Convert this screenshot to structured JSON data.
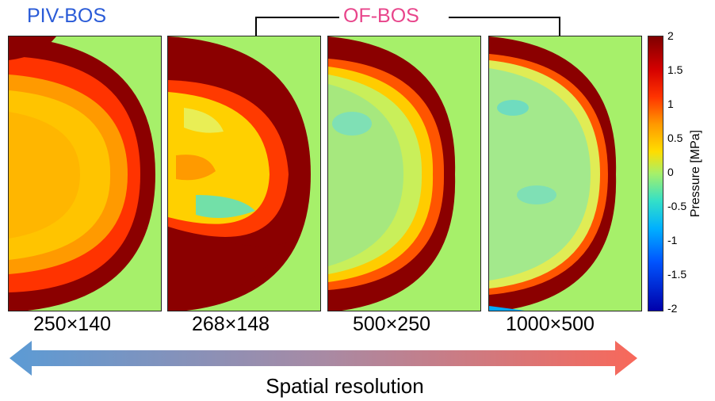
{
  "labels": {
    "left_method": "PIV-BOS",
    "right_method": "OF-BOS",
    "x_axis": "Spatial resolution",
    "colorbar_label": "Pressure [MPa]"
  },
  "colors": {
    "piv_label": "#2a5bd7",
    "ofbos_label": "#e8458b",
    "background_field": "#a6f06a",
    "arrow_left": "#5b9bd5",
    "arrow_right": "#f8685a"
  },
  "panels": [
    {
      "resolution": "250×140"
    },
    {
      "resolution": "268×148"
    },
    {
      "resolution": "500×250"
    },
    {
      "resolution": "1000×500"
    }
  ],
  "colorbar": {
    "ticks": [
      "2",
      "1.5",
      "1",
      "0.5",
      "0",
      "-0.5",
      "-1",
      "-1.5",
      "-2"
    ],
    "min": -2,
    "max": 2,
    "colormap": "jet"
  }
}
